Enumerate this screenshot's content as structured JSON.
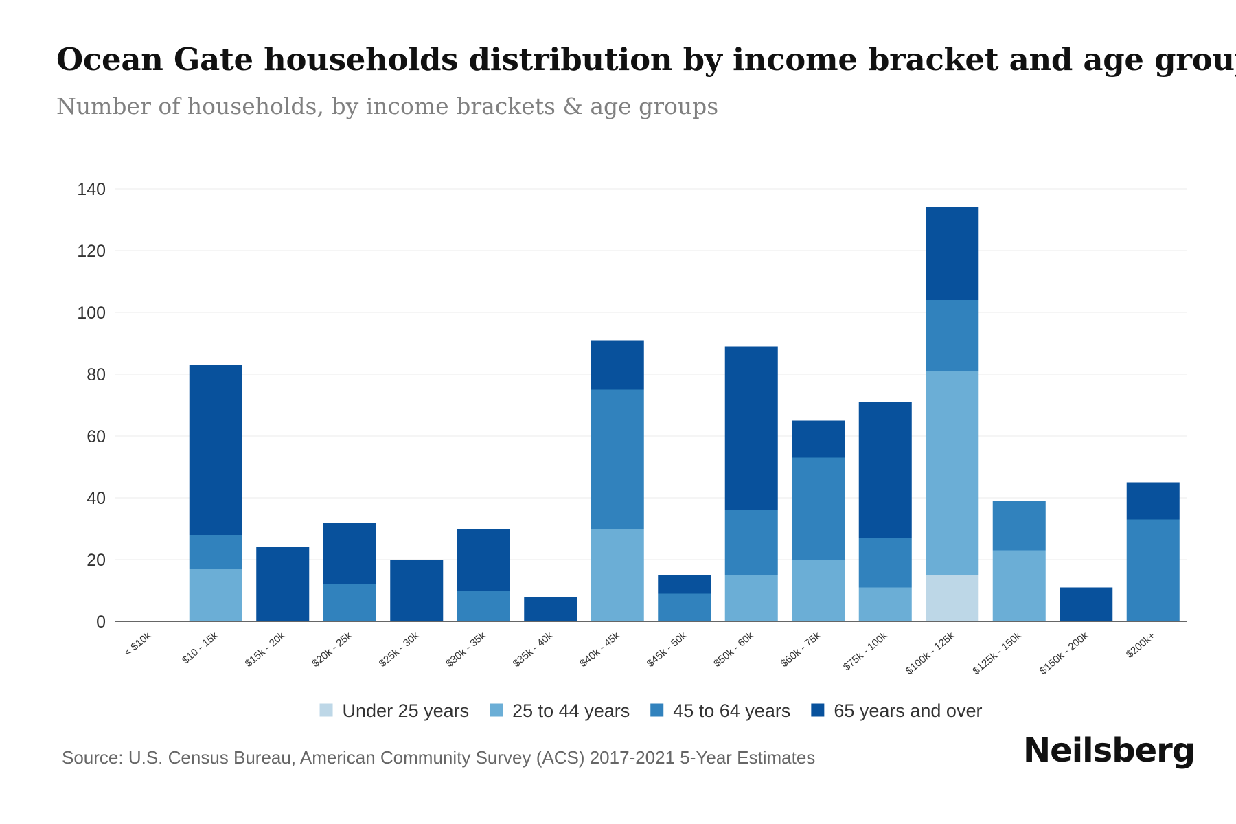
{
  "title": "Ocean Gate households distribution by income bracket and age group",
  "subtitle": "Number of households, by income brackets & age groups",
  "source": "Source: U.S. Census Bureau, American Community Survey (ACS) 2017-2021 5-Year Estimates",
  "brand": "Neilsberg",
  "chart_data": {
    "type": "bar",
    "stacked": true,
    "title": "Ocean Gate households distribution by income bracket and age group",
    "subtitle": "Number of households, by income brackets & age groups",
    "xlabel": "",
    "ylabel": "",
    "ylim": [
      0,
      140
    ],
    "yticks": [
      0,
      20,
      40,
      60,
      80,
      100,
      120,
      140
    ],
    "grid": true,
    "legend_position": "bottom-center",
    "categories": [
      "< $10k",
      "$10 - 15k",
      "$15k - 20k",
      "$20k - 25k",
      "$25k - 30k",
      "$30k - 35k",
      "$35k - 40k",
      "$40k - 45k",
      "$45k - 50k",
      "$50k - 60k",
      "$60k - 75k",
      "$75k - 100k",
      "$100k - 125k",
      "$125k - 150k",
      "$150k - 200k",
      "$200k+"
    ],
    "series": [
      {
        "name": "Under 25 years",
        "color": "#bdd7e7",
        "values": [
          0,
          0,
          0,
          0,
          0,
          0,
          0,
          0,
          0,
          0,
          0,
          0,
          15,
          0,
          0,
          0
        ]
      },
      {
        "name": "25 to 44 years",
        "color": "#6baed6",
        "values": [
          0,
          17,
          0,
          0,
          0,
          0,
          0,
          30,
          0,
          15,
          20,
          11,
          66,
          23,
          0,
          0
        ]
      },
      {
        "name": "45 to 64 years",
        "color": "#3182bd",
        "values": [
          0,
          11,
          0,
          12,
          0,
          10,
          0,
          45,
          9,
          21,
          33,
          16,
          23,
          16,
          0,
          33
        ]
      },
      {
        "name": "65 years and over",
        "color": "#08519c",
        "values": [
          0,
          55,
          24,
          20,
          20,
          20,
          8,
          16,
          6,
          53,
          12,
          44,
          30,
          0,
          11,
          12
        ]
      }
    ]
  }
}
